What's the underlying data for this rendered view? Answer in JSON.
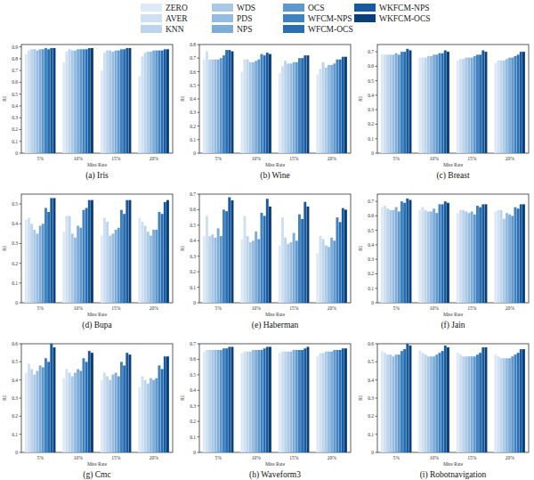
{
  "chart_data": [
    {
      "type": "bar",
      "title": "(a) Iris",
      "x_label": "Miss Rate",
      "y_label": "RI",
      "categories": [
        "5%",
        "10%",
        "15%",
        "20%"
      ],
      "ylim": [
        0,
        0.92
      ],
      "yticks": [
        0,
        0.1,
        0.2,
        0.3,
        0.4,
        0.5,
        0.6,
        0.7,
        0.8,
        0.9
      ],
      "series": [
        {
          "name": "ZERO",
          "color": "#dde9f5",
          "values": [
            0.84,
            0.77,
            0.7,
            0.65
          ]
        },
        {
          "name": "AVER",
          "color": "#cfe0f1",
          "values": [
            0.87,
            0.86,
            0.85,
            0.82
          ]
        },
        {
          "name": "KNN",
          "color": "#bcd5ec",
          "values": [
            0.88,
            0.88,
            0.87,
            0.85
          ]
        },
        {
          "name": "WDS",
          "color": "#a9c9e6",
          "values": [
            0.88,
            0.87,
            0.87,
            0.86
          ]
        },
        {
          "name": "PDS",
          "color": "#95bbe0",
          "values": [
            0.87,
            0.87,
            0.86,
            0.86
          ]
        },
        {
          "name": "NPS",
          "color": "#7eacd8",
          "values": [
            0.88,
            0.88,
            0.87,
            0.87
          ]
        },
        {
          "name": "OCS",
          "color": "#5f98cc",
          "values": [
            0.88,
            0.88,
            0.87,
            0.87
          ]
        },
        {
          "name": "WFCM-NPS",
          "color": "#3f82c0",
          "values": [
            0.89,
            0.88,
            0.88,
            0.87
          ]
        },
        {
          "name": "WFCM-OCS",
          "color": "#2a6eb2",
          "values": [
            0.88,
            0.88,
            0.88,
            0.87
          ]
        },
        {
          "name": "WKFCM-NPS",
          "color": "#185a9e",
          "values": [
            0.89,
            0.89,
            0.89,
            0.88
          ]
        },
        {
          "name": "WKFCM-OCS",
          "color": "#0b3f7a",
          "values": [
            0.89,
            0.89,
            0.89,
            0.88
          ]
        }
      ]
    },
    {
      "type": "bar",
      "title": "(b) Wine",
      "x_label": "Miss Rate",
      "y_label": "RI",
      "categories": [
        "5%",
        "10%",
        "15%",
        "20%"
      ],
      "ylim": [
        0,
        0.8
      ],
      "yticks": [
        0,
        0.1,
        0.2,
        0.3,
        0.4,
        0.5,
        0.6,
        0.7,
        0.8
      ],
      "series": [
        {
          "color": "#dde9f5",
          "values": [
            0.69,
            0.6,
            0.59,
            0.58
          ]
        },
        {
          "color": "#cfe0f1",
          "values": [
            0.75,
            0.69,
            0.64,
            0.62
          ]
        },
        {
          "color": "#bcd5ec",
          "values": [
            0.69,
            0.69,
            0.68,
            0.67
          ]
        },
        {
          "color": "#a9c9e6",
          "values": [
            0.69,
            0.67,
            0.66,
            0.63
          ]
        },
        {
          "color": "#95bbe0",
          "values": [
            0.69,
            0.67,
            0.66,
            0.65
          ]
        },
        {
          "color": "#7eacd8",
          "values": [
            0.69,
            0.68,
            0.67,
            0.65
          ]
        },
        {
          "color": "#5f98cc",
          "values": [
            0.7,
            0.69,
            0.67,
            0.66
          ]
        },
        {
          "color": "#3f82c0",
          "values": [
            0.72,
            0.73,
            0.7,
            0.69
          ]
        },
        {
          "color": "#2a6eb2",
          "values": [
            0.76,
            0.72,
            0.7,
            0.69
          ]
        },
        {
          "color": "#185a9e",
          "values": [
            0.76,
            0.74,
            0.72,
            0.71
          ]
        },
        {
          "color": "#0b3f7a",
          "values": [
            0.75,
            0.73,
            0.72,
            0.71
          ]
        }
      ]
    },
    {
      "type": "bar",
      "title": "(c) Breast",
      "x_label": "Miss Rate",
      "y_label": "RI",
      "categories": [
        "5%",
        "10%",
        "15%",
        "20%"
      ],
      "ylim": [
        0,
        0.75
      ],
      "yticks": [
        0,
        0.1,
        0.2,
        0.3,
        0.4,
        0.5,
        0.6,
        0.7
      ],
      "series": [
        {
          "color": "#dde9f5",
          "values": [
            0.68,
            0.66,
            0.64,
            0.62
          ]
        },
        {
          "color": "#cfe0f1",
          "values": [
            0.68,
            0.66,
            0.65,
            0.64
          ]
        },
        {
          "color": "#bcd5ec",
          "values": [
            0.68,
            0.66,
            0.65,
            0.64
          ]
        },
        {
          "color": "#a9c9e6",
          "values": [
            0.68,
            0.67,
            0.66,
            0.64
          ]
        },
        {
          "color": "#95bbe0",
          "values": [
            0.68,
            0.67,
            0.66,
            0.65
          ]
        },
        {
          "color": "#7eacd8",
          "values": [
            0.69,
            0.68,
            0.66,
            0.66
          ]
        },
        {
          "color": "#5f98cc",
          "values": [
            0.68,
            0.68,
            0.67,
            0.66
          ]
        },
        {
          "color": "#3f82c0",
          "values": [
            0.7,
            0.69,
            0.68,
            0.67
          ]
        },
        {
          "color": "#2a6eb2",
          "values": [
            0.7,
            0.69,
            0.68,
            0.68
          ]
        },
        {
          "color": "#185a9e",
          "values": [
            0.72,
            0.71,
            0.71,
            0.7
          ]
        },
        {
          "color": "#0b3f7a",
          "values": [
            0.71,
            0.7,
            0.7,
            0.7
          ]
        }
      ]
    },
    {
      "type": "bar",
      "title": "(d) Bupa",
      "x_label": "Miss Rate",
      "y_label": "RI",
      "categories": [
        "5%",
        "10%",
        "15%",
        "20%"
      ],
      "ylim": [
        0,
        0.55
      ],
      "yticks": [
        0,
        0.1,
        0.2,
        0.3,
        0.4,
        0.5
      ],
      "series": [
        {
          "color": "#dde9f5",
          "values": [
            0.42,
            0.36,
            0.34,
            0.43
          ]
        },
        {
          "color": "#cfe0f1",
          "values": [
            0.43,
            0.44,
            0.43,
            0.41
          ]
        },
        {
          "color": "#bcd5ec",
          "values": [
            0.4,
            0.44,
            0.41,
            0.39
          ]
        },
        {
          "color": "#a9c9e6",
          "values": [
            0.37,
            0.35,
            0.34,
            0.36
          ]
        },
        {
          "color": "#95bbe0",
          "values": [
            0.35,
            0.33,
            0.35,
            0.34
          ]
        },
        {
          "color": "#7eacd8",
          "values": [
            0.39,
            0.39,
            0.37,
            0.37
          ]
        },
        {
          "color": "#5f98cc",
          "values": [
            0.4,
            0.38,
            0.38,
            0.37
          ]
        },
        {
          "color": "#3f82c0",
          "values": [
            0.48,
            0.47,
            0.47,
            0.46
          ]
        },
        {
          "color": "#2a6eb2",
          "values": [
            0.46,
            0.48,
            0.45,
            0.45
          ]
        },
        {
          "color": "#185a9e",
          "values": [
            0.53,
            0.52,
            0.52,
            0.51
          ]
        },
        {
          "color": "#0b3f7a",
          "values": [
            0.53,
            0.52,
            0.52,
            0.52
          ]
        }
      ]
    },
    {
      "type": "bar",
      "title": "(e) Haberman",
      "x_label": "Miss Rate",
      "y_label": "RI",
      "categories": [
        "5%",
        "10%",
        "15%",
        "20%"
      ],
      "ylim": [
        0,
        0.7
      ],
      "yticks": [
        0,
        0.1,
        0.2,
        0.3,
        0.4,
        0.5,
        0.6,
        0.7
      ],
      "series": [
        {
          "color": "#dde9f5",
          "values": [
            0.43,
            0.41,
            0.37,
            0.32
          ]
        },
        {
          "color": "#cfe0f1",
          "values": [
            0.56,
            0.56,
            0.55,
            0.43
          ]
        },
        {
          "color": "#bcd5ec",
          "values": [
            0.43,
            0.43,
            0.42,
            0.41
          ]
        },
        {
          "color": "#a9c9e6",
          "values": [
            0.44,
            0.39,
            0.38,
            0.37
          ]
        },
        {
          "color": "#95bbe0",
          "values": [
            0.42,
            0.4,
            0.39,
            0.36
          ]
        },
        {
          "color": "#7eacd8",
          "values": [
            0.48,
            0.46,
            0.45,
            0.42
          ]
        },
        {
          "color": "#5f98cc",
          "values": [
            0.43,
            0.41,
            0.4,
            0.4
          ]
        },
        {
          "color": "#3f82c0",
          "values": [
            0.6,
            0.58,
            0.57,
            0.55
          ]
        },
        {
          "color": "#2a6eb2",
          "values": [
            0.59,
            0.56,
            0.54,
            0.52
          ]
        },
        {
          "color": "#185a9e",
          "values": [
            0.68,
            0.67,
            0.65,
            0.61
          ]
        },
        {
          "color": "#0b3f7a",
          "values": [
            0.66,
            0.62,
            0.62,
            0.6
          ]
        }
      ]
    },
    {
      "type": "bar",
      "title": "(f) Jain",
      "x_label": "Miss Rate",
      "y_label": "RI",
      "categories": [
        "5%",
        "10%",
        "15%",
        "20%"
      ],
      "ylim": [
        0,
        0.75
      ],
      "yticks": [
        0,
        0.1,
        0.2,
        0.3,
        0.4,
        0.5,
        0.6,
        0.7
      ],
      "series": [
        {
          "color": "#dde9f5",
          "values": [
            0.66,
            0.64,
            0.62,
            0.63
          ]
        },
        {
          "color": "#cfe0f1",
          "values": [
            0.67,
            0.66,
            0.64,
            0.64
          ]
        },
        {
          "color": "#bcd5ec",
          "values": [
            0.65,
            0.64,
            0.64,
            0.64
          ]
        },
        {
          "color": "#a9c9e6",
          "values": [
            0.64,
            0.63,
            0.63,
            0.58
          ]
        },
        {
          "color": "#95bbe0",
          "values": [
            0.64,
            0.63,
            0.62,
            0.62
          ]
        },
        {
          "color": "#7eacd8",
          "values": [
            0.66,
            0.65,
            0.63,
            0.61
          ]
        },
        {
          "color": "#5f98cc",
          "values": [
            0.63,
            0.62,
            0.61,
            0.6
          ]
        },
        {
          "color": "#3f82c0",
          "values": [
            0.7,
            0.68,
            0.67,
            0.66
          ]
        },
        {
          "color": "#2a6eb2",
          "values": [
            0.69,
            0.68,
            0.66,
            0.65
          ]
        },
        {
          "color": "#185a9e",
          "values": [
            0.72,
            0.7,
            0.68,
            0.68
          ]
        },
        {
          "color": "#0b3f7a",
          "values": [
            0.71,
            0.69,
            0.68,
            0.68
          ]
        }
      ]
    },
    {
      "type": "bar",
      "title": "(g) Cmc",
      "x_label": "Miss Rate",
      "y_label": "RI",
      "categories": [
        "5%",
        "10%",
        "15%",
        "20%"
      ],
      "ylim": [
        0,
        0.6
      ],
      "yticks": [
        0,
        0.1,
        0.2,
        0.3,
        0.4,
        0.5,
        0.6
      ],
      "series": [
        {
          "color": "#dde9f5",
          "values": [
            0.44,
            0.41,
            0.4,
            0.36
          ]
        },
        {
          "color": "#cfe0f1",
          "values": [
            0.49,
            0.46,
            0.44,
            0.42
          ]
        },
        {
          "color": "#bcd5ec",
          "values": [
            0.46,
            0.44,
            0.42,
            0.4
          ]
        },
        {
          "color": "#a9c9e6",
          "values": [
            0.43,
            0.42,
            0.4,
            0.38
          ]
        },
        {
          "color": "#95bbe0",
          "values": [
            0.45,
            0.44,
            0.43,
            0.41
          ]
        },
        {
          "color": "#7eacd8",
          "values": [
            0.48,
            0.46,
            0.44,
            0.4
          ]
        },
        {
          "color": "#5f98cc",
          "values": [
            0.47,
            0.45,
            0.42,
            0.41
          ]
        },
        {
          "color": "#3f82c0",
          "values": [
            0.52,
            0.52,
            0.5,
            0.48
          ]
        },
        {
          "color": "#2a6eb2",
          "values": [
            0.5,
            0.5,
            0.48,
            0.46
          ]
        },
        {
          "color": "#185a9e",
          "values": [
            0.6,
            0.56,
            0.55,
            0.53
          ]
        },
        {
          "color": "#0b3f7a",
          "values": [
            0.58,
            0.55,
            0.54,
            0.53
          ]
        }
      ]
    },
    {
      "type": "bar",
      "title": "(h) Waveform3",
      "x_label": "Miss Rate",
      "y_label": "RI",
      "categories": [
        "5%",
        "10%",
        "15%",
        "20%"
      ],
      "ylim": [
        0,
        0.7
      ],
      "yticks": [
        0,
        0.1,
        0.2,
        0.3,
        0.4,
        0.5,
        0.6,
        0.7
      ],
      "series": [
        {
          "color": "#dde9f5",
          "values": [
            0.65,
            0.64,
            0.64,
            0.62
          ]
        },
        {
          "color": "#cfe0f1",
          "values": [
            0.66,
            0.65,
            0.65,
            0.64
          ]
        },
        {
          "color": "#bcd5ec",
          "values": [
            0.66,
            0.65,
            0.65,
            0.64
          ]
        },
        {
          "color": "#a9c9e6",
          "values": [
            0.66,
            0.65,
            0.65,
            0.65
          ]
        },
        {
          "color": "#95bbe0",
          "values": [
            0.66,
            0.66,
            0.65,
            0.65
          ]
        },
        {
          "color": "#7eacd8",
          "values": [
            0.66,
            0.66,
            0.66,
            0.65
          ]
        },
        {
          "color": "#5f98cc",
          "values": [
            0.66,
            0.66,
            0.66,
            0.66
          ]
        },
        {
          "color": "#3f82c0",
          "values": [
            0.67,
            0.66,
            0.66,
            0.66
          ]
        },
        {
          "color": "#2a6eb2",
          "values": [
            0.67,
            0.67,
            0.66,
            0.66
          ]
        },
        {
          "color": "#185a9e",
          "values": [
            0.68,
            0.68,
            0.67,
            0.67
          ]
        },
        {
          "color": "#0b3f7a",
          "values": [
            0.68,
            0.68,
            0.68,
            0.67
          ]
        }
      ]
    },
    {
      "type": "bar",
      "title": "(i) Robotnavigation",
      "x_label": "Miss Rate",
      "y_label": "RI",
      "categories": [
        "5%",
        "10%",
        "15%",
        "20%"
      ],
      "ylim": [
        0,
        0.6
      ],
      "yticks": [
        0,
        0.1,
        0.2,
        0.3,
        0.4,
        0.5,
        0.6
      ],
      "series": [
        {
          "color": "#dde9f5",
          "values": [
            0.56,
            0.56,
            0.55,
            0.54
          ]
        },
        {
          "color": "#cfe0f1",
          "values": [
            0.55,
            0.55,
            0.54,
            0.53
          ]
        },
        {
          "color": "#bcd5ec",
          "values": [
            0.54,
            0.54,
            0.53,
            0.52
          ]
        },
        {
          "color": "#a9c9e6",
          "values": [
            0.54,
            0.53,
            0.53,
            0.52
          ]
        },
        {
          "color": "#95bbe0",
          "values": [
            0.53,
            0.53,
            0.53,
            0.52
          ]
        },
        {
          "color": "#7eacd8",
          "values": [
            0.54,
            0.53,
            0.53,
            0.52
          ]
        },
        {
          "color": "#5f98cc",
          "values": [
            0.54,
            0.54,
            0.53,
            0.53
          ]
        },
        {
          "color": "#3f82c0",
          "values": [
            0.56,
            0.55,
            0.54,
            0.54
          ]
        },
        {
          "color": "#2a6eb2",
          "values": [
            0.57,
            0.56,
            0.55,
            0.55
          ]
        },
        {
          "color": "#185a9e",
          "values": [
            0.6,
            0.59,
            0.58,
            0.57
          ]
        },
        {
          "color": "#0b3f7a",
          "values": [
            0.59,
            0.58,
            0.58,
            0.57
          ]
        }
      ]
    }
  ]
}
